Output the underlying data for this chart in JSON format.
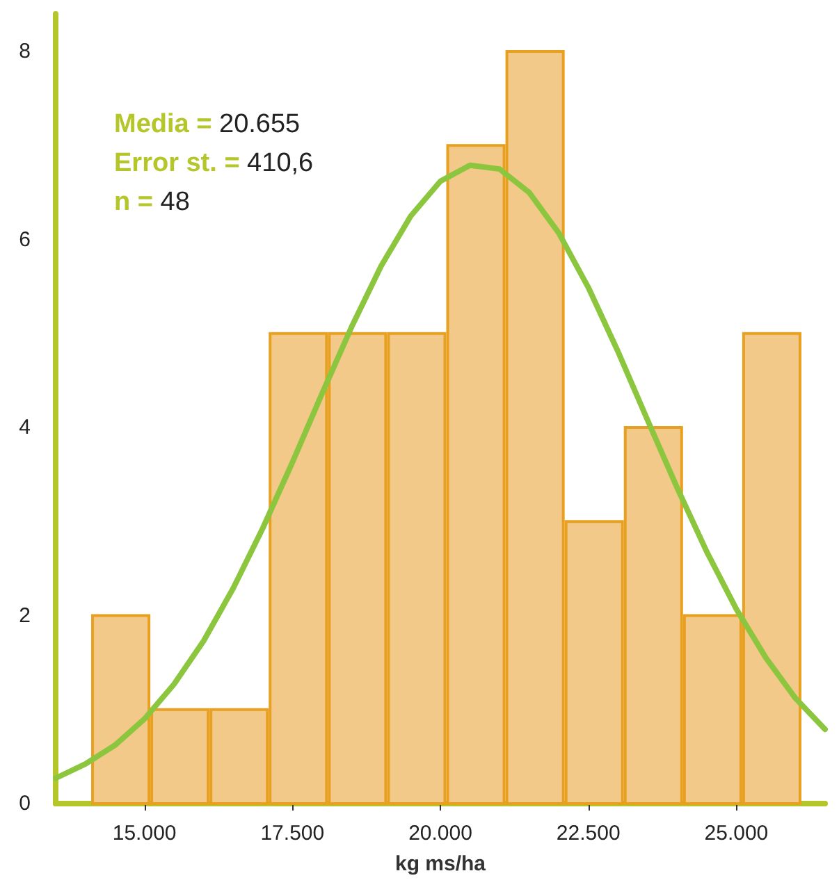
{
  "chart_data": {
    "type": "histogram",
    "xlabel": "kg ms/ha",
    "bins": [
      14100,
      15100,
      16100,
      17100,
      18100,
      19100,
      20100,
      21100,
      22100,
      23100,
      24100,
      25100,
      26100
    ],
    "series": [
      {
        "color": "#f3c98a",
        "values": [
          2,
          1,
          1,
          5,
          5,
          5,
          7,
          8,
          3,
          4,
          2,
          5
        ]
      },
      {
        "type": "line",
        "color": "#8cc63f",
        "marker": "none",
        "x": [
          13500,
          14000,
          14500,
          15000,
          15500,
          16000,
          16500,
          17000,
          17500,
          18000,
          18500,
          19000,
          19500,
          20000,
          20500,
          21000,
          21500,
          22000,
          22500,
          23000,
          23500,
          24000,
          24500,
          25000,
          25500,
          26000,
          26500
        ],
        "values": [
          0.27,
          0.42,
          0.62,
          0.9,
          1.27,
          1.73,
          2.29,
          2.93,
          3.63,
          4.36,
          5.07,
          5.72,
          6.25,
          6.62,
          6.79,
          6.75,
          6.5,
          6.07,
          5.49,
          4.81,
          4.08,
          3.36,
          2.68,
          2.07,
          1.55,
          1.12,
          0.79
        ]
      }
    ],
    "xlim": [
      13500,
      26500
    ],
    "ylim": [
      0,
      8.4
    ],
    "xticks": [
      {
        "value": 15000,
        "label": "15.000"
      },
      {
        "value": 17500,
        "label": "17.500"
      },
      {
        "value": 20000,
        "label": "20.000"
      },
      {
        "value": 22500,
        "label": "22.500"
      },
      {
        "value": 25000,
        "label": "25.000"
      }
    ],
    "yticks": [
      0,
      2,
      4,
      6,
      8
    ],
    "annotations": [
      "Media = 20.655",
      "Error st. = 410,6",
      "n = 48"
    ],
    "grid": false
  }
}
